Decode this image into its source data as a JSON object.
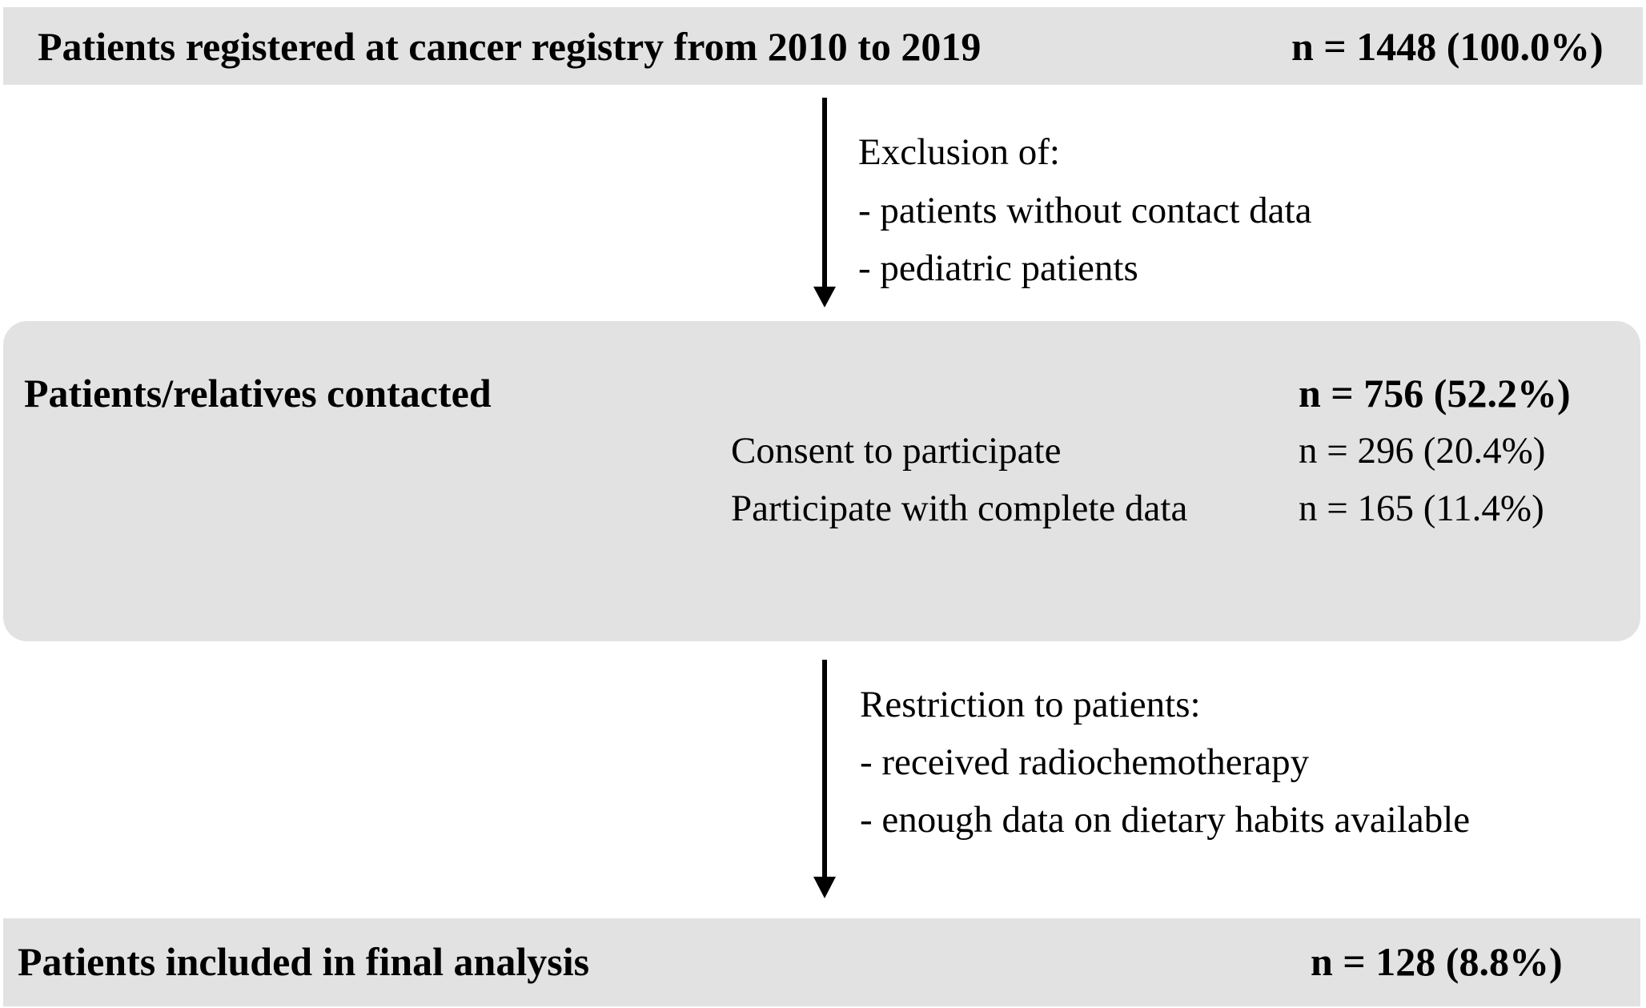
{
  "top": {
    "label": "Patients registered at cancer registry from 2010 to 2019",
    "count": "n = 1448 (100.0%)"
  },
  "exclusion": {
    "heading": "Exclusion of:",
    "items": [
      "- patients without contact data",
      "- pediatric patients"
    ]
  },
  "middle": {
    "label": "Patients/relatives contacted",
    "count": "n = 756 (52.2%)",
    "rows": [
      {
        "label": "Consent to participate",
        "count": "n = 296 (20.4%)"
      },
      {
        "label": "Participate with complete data",
        "count": "n = 165 (11.4%)"
      }
    ]
  },
  "restriction": {
    "heading": "Restriction to patients:",
    "items": [
      "- received radiochemotherapy",
      "- enough data on dietary habits available"
    ]
  },
  "bottom": {
    "label": "Patients included in final analysis",
    "count": "n = 128 (8.8%)"
  },
  "colors": {
    "box_fill": "#e2e2e2",
    "text": "#000000",
    "arrow": "#000000"
  }
}
